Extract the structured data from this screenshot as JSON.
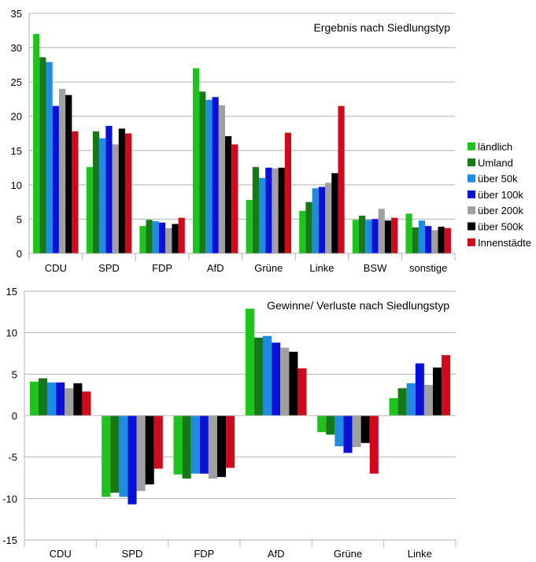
{
  "series_meta": [
    {
      "name": "ländlich",
      "color": "#1ec31e"
    },
    {
      "name": "Umland",
      "color": "#157a15"
    },
    {
      "name": "über 50k",
      "color": "#1e8ce0"
    },
    {
      "name": "über 100k",
      "color": "#0a10d8"
    },
    {
      "name": "über 200k",
      "color": "#a0a0a0"
    },
    {
      "name": "über 500k",
      "color": "#000000"
    },
    {
      "name": "Innenstädte",
      "color": "#d00a1a"
    }
  ],
  "chart_data": [
    {
      "type": "bar",
      "title": "Ergebnis nach Siedlungstyp",
      "xlabel": "",
      "ylabel": "",
      "ylim": [
        0,
        35
      ],
      "yticks": [
        0,
        5,
        10,
        15,
        20,
        25,
        30,
        35
      ],
      "grid": true,
      "legend": "right",
      "categories": [
        "CDU",
        "SPD",
        "FDP",
        "AfD",
        "Grüne",
        "Linke",
        "BSW",
        "sonstige"
      ],
      "series": [
        {
          "name": "ländlich",
          "values": [
            32.0,
            12.6,
            4.0,
            27.0,
            7.8,
            6.2,
            4.9,
            5.8
          ]
        },
        {
          "name": "Umland",
          "values": [
            28.6,
            17.8,
            4.9,
            23.6,
            12.6,
            7.5,
            5.5,
            3.8
          ]
        },
        {
          "name": "über 50k",
          "values": [
            27.9,
            16.8,
            4.7,
            22.4,
            11.0,
            9.5,
            4.9,
            4.8
          ]
        },
        {
          "name": "über 100k",
          "values": [
            21.5,
            18.6,
            4.5,
            22.8,
            12.5,
            9.7,
            5.0,
            4.0
          ]
        },
        {
          "name": "über 200k",
          "values": [
            24.0,
            15.9,
            3.7,
            21.6,
            12.4,
            10.3,
            6.5,
            3.4
          ]
        },
        {
          "name": "über 500k",
          "values": [
            23.1,
            18.2,
            4.3,
            17.1,
            12.5,
            11.7,
            4.8,
            3.9
          ]
        },
        {
          "name": "Innenstädte",
          "values": [
            17.8,
            17.5,
            5.2,
            15.9,
            17.6,
            21.5,
            5.2,
            3.7
          ]
        }
      ]
    },
    {
      "type": "bar",
      "title": "Gewinne/ Verluste nach Siedlungstyp",
      "xlabel": "",
      "ylabel": "",
      "ylim": [
        -15,
        15
      ],
      "yticks": [
        -15,
        -10,
        -5,
        0,
        5,
        10,
        15
      ],
      "grid": true,
      "legend": "none",
      "categories": [
        "CDU",
        "SPD",
        "FDP",
        "AfD",
        "Grüne",
        "Linke"
      ],
      "series": [
        {
          "name": "ländlich",
          "values": [
            4.1,
            -9.8,
            -7.1,
            12.9,
            -2.0,
            2.1
          ]
        },
        {
          "name": "Umland",
          "values": [
            4.5,
            -9.3,
            -7.6,
            9.4,
            -2.3,
            3.3
          ]
        },
        {
          "name": "über 50k",
          "values": [
            4.0,
            -9.8,
            -7.0,
            9.6,
            -3.7,
            3.9
          ]
        },
        {
          "name": "über 100k",
          "values": [
            4.0,
            -10.7,
            -7.0,
            8.8,
            -4.5,
            6.3
          ]
        },
        {
          "name": "über 200k",
          "values": [
            3.3,
            -9.1,
            -7.6,
            8.2,
            -3.8,
            3.7
          ]
        },
        {
          "name": "über 500k",
          "values": [
            3.9,
            -8.3,
            -7.4,
            7.7,
            -3.3,
            5.8
          ]
        },
        {
          "name": "Innenstädte",
          "values": [
            2.9,
            -6.4,
            -6.3,
            5.7,
            -7.0,
            7.3
          ]
        }
      ]
    }
  ]
}
